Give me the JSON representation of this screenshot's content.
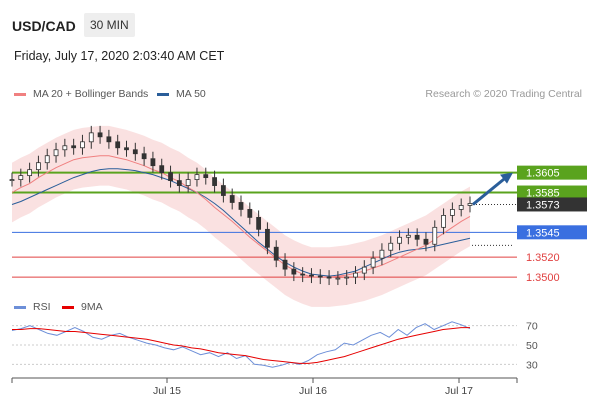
{
  "header": {
    "pair": "USD/CAD",
    "timeframe": "30 MIN",
    "datetime": "Friday, July 17, 2020 2:03:40 AM CET"
  },
  "legend": {
    "items": [
      {
        "label": "MA 20 + Bollinger Bands",
        "color": "#f08080"
      },
      {
        "label": "MA 50",
        "color": "#2a5e9a"
      }
    ],
    "credit": "Research © 2020 Trading Central"
  },
  "rsi_legend": {
    "items": [
      {
        "label": "RSI",
        "color": "#6d8fd8"
      },
      {
        "label": "9MA",
        "color": "#e60000"
      }
    ]
  },
  "colors": {
    "candle": "#333333",
    "bollinger_fill": "#fadede",
    "ma20": "#f08080",
    "ma50": "#2a5e9a",
    "resistance": "#5aa31e",
    "pivot": "#3a6fe0",
    "support": "#e04040",
    "current": "#333333",
    "arrow": "#2a5e9a",
    "rsi": "#6d8fd8",
    "rsi_ma": "#e60000"
  },
  "chart_data": [
    {
      "type": "line",
      "title": "USD/CAD 30 MIN",
      "y_range": [
        1.3485,
        1.3675
      ],
      "x_ticks": [
        "Jul 15",
        "Jul 16",
        "Jul 17"
      ],
      "levels": [
        {
          "label": "1.3605",
          "value": 1.3605,
          "kind": "resistance"
        },
        {
          "label": "1.3585",
          "value": 1.3585,
          "kind": "resistance"
        },
        {
          "label": "1.3573",
          "value": 1.3573,
          "kind": "current"
        },
        {
          "label": "1.3545",
          "value": 1.3545,
          "kind": "pivot"
        },
        {
          "label": "1.3520",
          "value": 1.352,
          "kind": "support"
        },
        {
          "label": "1.3500",
          "value": 1.35,
          "kind": "support"
        }
      ],
      "series": [
        {
          "name": "Price",
          "values": [
            1.3598,
            1.3602,
            1.3608,
            1.3615,
            1.3622,
            1.3628,
            1.3632,
            1.363,
            1.3636,
            1.3645,
            1.3641,
            1.3636,
            1.363,
            1.3628,
            1.3624,
            1.3619,
            1.3612,
            1.3605,
            1.3597,
            1.3592,
            1.3598,
            1.3603,
            1.36,
            1.3592,
            1.3582,
            1.3575,
            1.3568,
            1.356,
            1.3548,
            1.353,
            1.3517,
            1.3508,
            1.3503,
            1.3502,
            1.3501,
            1.35,
            1.3499,
            1.3499,
            1.35,
            1.3504,
            1.351,
            1.3519,
            1.3527,
            1.3534,
            1.354,
            1.3542,
            1.3538,
            1.3533,
            1.355,
            1.3562,
            1.3568,
            1.3572,
            1.3574
          ]
        },
        {
          "name": "MA 20",
          "values": [
            1.3585,
            1.359,
            1.3594,
            1.36,
            1.3605,
            1.361,
            1.3614,
            1.3618,
            1.362,
            1.3621,
            1.3622,
            1.3622,
            1.362,
            1.3618,
            1.3615,
            1.3612,
            1.3608,
            1.3605,
            1.36,
            1.3596,
            1.359,
            1.3585,
            1.3578,
            1.357,
            1.3563,
            1.3556,
            1.3548,
            1.354,
            1.3533,
            1.3526,
            1.3519,
            1.3512,
            1.3507,
            1.3503,
            1.35,
            1.35,
            1.35,
            1.3501,
            1.3502,
            1.3504,
            1.3506,
            1.3509,
            1.3512,
            1.3516,
            1.352,
            1.3524,
            1.3528,
            1.3532,
            1.3538,
            1.3544,
            1.355,
            1.3556,
            1.3561
          ]
        },
        {
          "name": "MA 50",
          "values": [
            1.3573,
            1.3576,
            1.358,
            1.3584,
            1.3588,
            1.3592,
            1.3596,
            1.36,
            1.3603,
            1.3606,
            1.3608,
            1.3609,
            1.3609,
            1.3608,
            1.3607,
            1.3605,
            1.3603,
            1.36,
            1.3597,
            1.3593,
            1.3589,
            1.3585,
            1.358,
            1.3574,
            1.3567,
            1.3559,
            1.3551,
            1.3543,
            1.3535,
            1.3528,
            1.3521,
            1.3515,
            1.351,
            1.3506,
            1.3503,
            1.3502,
            1.3501,
            1.3502,
            1.3504,
            1.3506,
            1.351,
            1.3514,
            1.3518,
            1.3522,
            1.3525,
            1.3527,
            1.3528,
            1.3529,
            1.3531,
            1.3533,
            1.3535,
            1.3537,
            1.3539
          ]
        }
      ],
      "projection": {
        "from": 1.3573,
        "to": 1.3605
      }
    },
    {
      "type": "line",
      "title": "RSI",
      "y_range": [
        20,
        80
      ],
      "y_ticks": [
        70,
        50,
        30
      ],
      "series": [
        {
          "name": "RSI",
          "values": [
            65,
            67,
            70,
            66,
            62,
            60,
            64,
            68,
            64,
            58,
            56,
            60,
            62,
            58,
            55,
            52,
            50,
            47,
            45,
            48,
            44,
            40,
            42,
            38,
            42,
            36,
            39,
            30,
            29,
            27,
            29,
            32,
            30,
            34,
            40,
            43,
            45,
            52,
            50,
            55,
            60,
            63,
            58,
            66,
            60,
            68,
            72,
            66,
            70,
            74,
            71,
            67
          ]
        },
        {
          "name": "9MA",
          "values": [
            66,
            66,
            67,
            67,
            66,
            65,
            64,
            64,
            63,
            62,
            61,
            60,
            59,
            58,
            57,
            56,
            54,
            52,
            50,
            49,
            47,
            46,
            44,
            42,
            41,
            40,
            39,
            37,
            35,
            34,
            33,
            32,
            31,
            31,
            32,
            34,
            36,
            38,
            41,
            44,
            47,
            50,
            53,
            56,
            58,
            60,
            62,
            64,
            66,
            67,
            68,
            68
          ]
        }
      ]
    }
  ]
}
